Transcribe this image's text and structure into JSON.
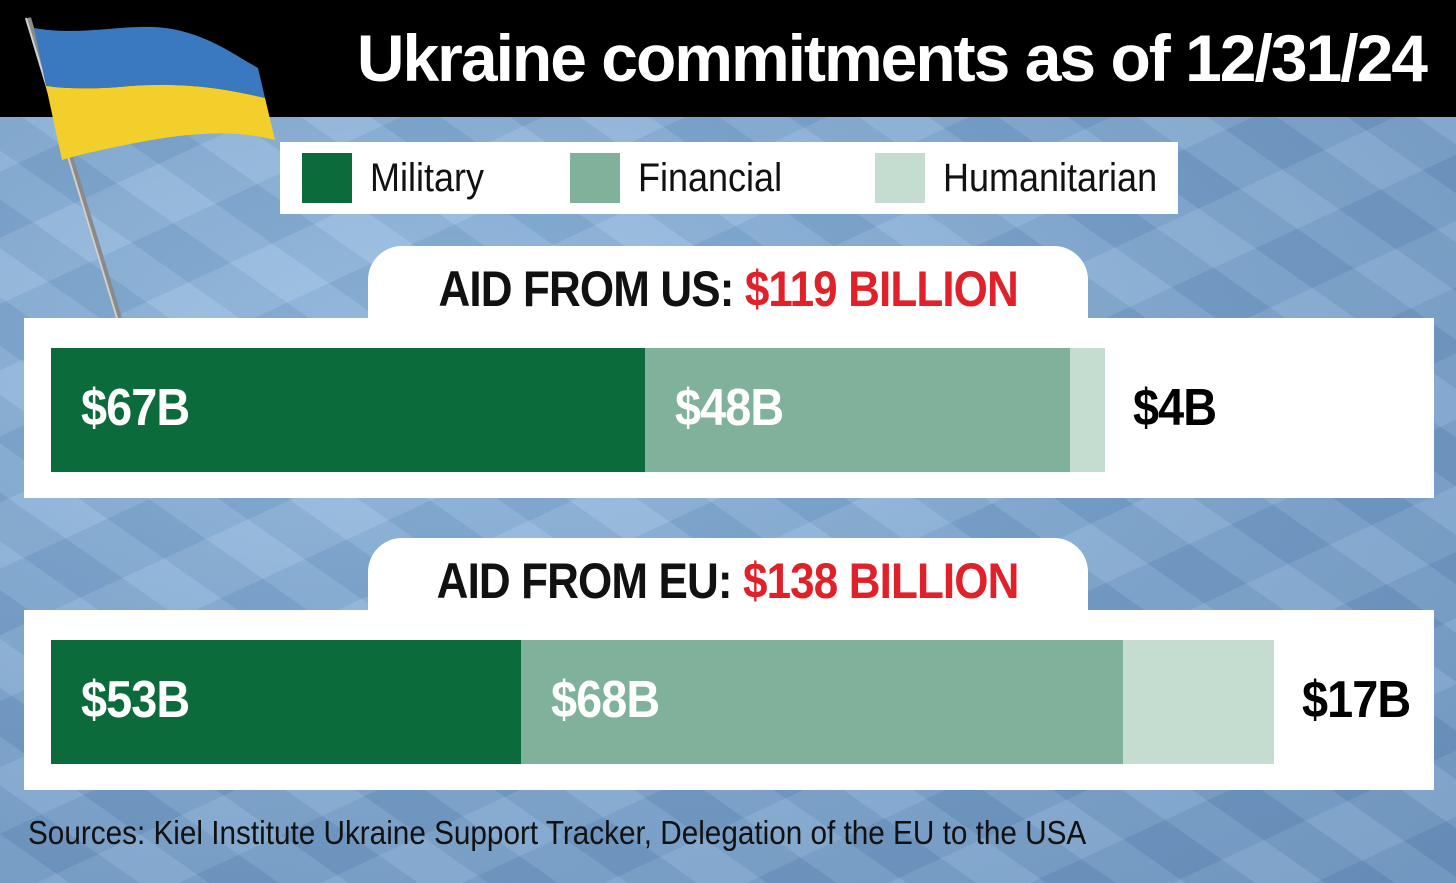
{
  "title": "Ukraine commitments as of 12/31/24",
  "colors": {
    "military": "#0b6b3a",
    "financial": "#80b29b",
    "humanitarian": "#c4ddd0",
    "accent_red": "#e0212a",
    "flag_blue": "#3a78c0",
    "flag_yellow": "#f2cf2a"
  },
  "legend": [
    {
      "label": "Military",
      "key": "military"
    },
    {
      "label": "Financial",
      "key": "financial"
    },
    {
      "label": "Humanitarian",
      "key": "humanitarian"
    }
  ],
  "chart_data": {
    "type": "bar",
    "orientation": "horizontal-stacked",
    "title": "Ukraine commitments as of 12/31/24",
    "categories": [
      "AID FROM US",
      "AID FROM EU"
    ],
    "series": [
      {
        "name": "Military",
        "values": [
          67,
          53
        ]
      },
      {
        "name": "Financial",
        "values": [
          48,
          68
        ]
      },
      {
        "name": "Humanitarian",
        "values": [
          4,
          17
        ]
      }
    ],
    "units": "billion USD",
    "legend_position": "top",
    "grid": false,
    "panels": [
      {
        "heading": "AID FROM US: ",
        "total_label": "$119 BILLION",
        "segment_labels": [
          "$67B",
          "$48B",
          "$4B"
        ]
      },
      {
        "heading": "AID FROM EU: ",
        "total_label": "$138 BILLION",
        "segment_labels": [
          "$53B",
          "$68B",
          "$17B"
        ]
      }
    ]
  },
  "source": "Sources: Kiel Institute Ukraine Support Tracker, Delegation of the EU to the USA"
}
